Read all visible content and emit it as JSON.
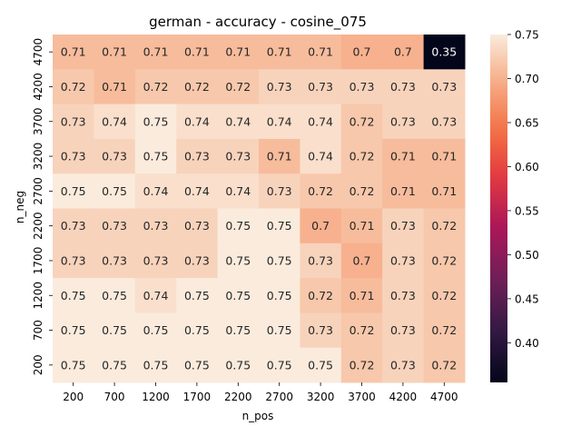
{
  "chart_data": {
    "type": "heatmap",
    "title": "german - accuracy - cosine_075",
    "xlabel": "n_pos",
    "ylabel": "n_neg",
    "x_categories": [
      "200",
      "700",
      "1200",
      "1700",
      "2200",
      "2700",
      "3200",
      "3700",
      "4200",
      "4700"
    ],
    "y_categories": [
      "4700",
      "4200",
      "3700",
      "3200",
      "2700",
      "2200",
      "1700",
      "1200",
      "700",
      "200"
    ],
    "values": [
      [
        0.71,
        0.71,
        0.71,
        0.71,
        0.71,
        0.71,
        0.71,
        0.7,
        0.7,
        0.35
      ],
      [
        0.72,
        0.71,
        0.72,
        0.72,
        0.72,
        0.73,
        0.73,
        0.73,
        0.73,
        0.73
      ],
      [
        0.73,
        0.74,
        0.75,
        0.74,
        0.74,
        0.74,
        0.74,
        0.72,
        0.73,
        0.73
      ],
      [
        0.73,
        0.73,
        0.75,
        0.73,
        0.73,
        0.71,
        0.74,
        0.72,
        0.71,
        0.71
      ],
      [
        0.75,
        0.75,
        0.74,
        0.74,
        0.74,
        0.73,
        0.72,
        0.72,
        0.71,
        0.71
      ],
      [
        0.73,
        0.73,
        0.73,
        0.73,
        0.75,
        0.75,
        0.7,
        0.71,
        0.73,
        0.72
      ],
      [
        0.73,
        0.73,
        0.73,
        0.73,
        0.75,
        0.75,
        0.73,
        0.7,
        0.73,
        0.72
      ],
      [
        0.75,
        0.75,
        0.74,
        0.75,
        0.75,
        0.75,
        0.72,
        0.71,
        0.73,
        0.72
      ],
      [
        0.75,
        0.75,
        0.75,
        0.75,
        0.75,
        0.75,
        0.73,
        0.72,
        0.73,
        0.72
      ],
      [
        0.75,
        0.75,
        0.75,
        0.75,
        0.75,
        0.75,
        0.75,
        0.72,
        0.73,
        0.72
      ]
    ],
    "colorbar": {
      "range": [
        0.355,
        0.75
      ],
      "ticks": [
        "0.40",
        "0.45",
        "0.50",
        "0.55",
        "0.60",
        "0.65",
        "0.70",
        "0.75"
      ],
      "colormap": "rocket"
    },
    "grid": false
  }
}
